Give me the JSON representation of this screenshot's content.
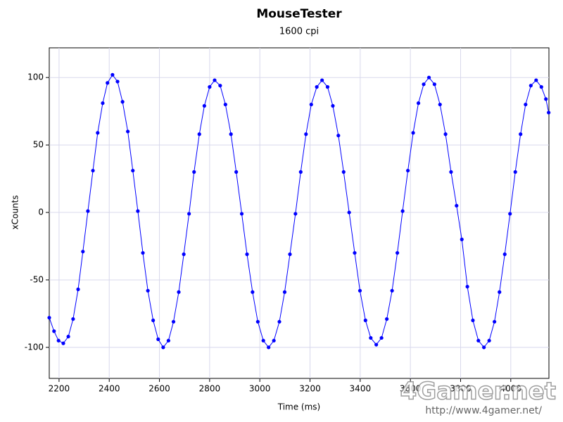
{
  "chart_data": {
    "type": "scatter",
    "line": true,
    "title": "MouseTester",
    "subtitle": "1600 cpi",
    "x_label": "Time (ms)",
    "y_label": "xCounts",
    "xlim": [
      2161,
      4152
    ],
    "ylim": [
      -123,
      122
    ],
    "xticks": [
      2200,
      2400,
      2600,
      2800,
      3000,
      3200,
      3400,
      3600,
      3800,
      4000
    ],
    "yticks": [
      -100,
      -50,
      0,
      50,
      100
    ],
    "grid": true,
    "series": [
      {
        "color": "#0000ff",
        "x": [
          2161,
          2180,
          2198,
          2217,
          2237,
          2256,
          2276,
          2295,
          2315,
          2335,
          2354,
          2374,
          2393,
          2413,
          2433,
          2453,
          2474,
          2494,
          2514,
          2534,
          2554,
          2575,
          2595,
          2615,
          2636,
          2656,
          2677,
          2697,
          2718,
          2738,
          2759,
          2779,
          2800,
          2820,
          2842,
          2863,
          2885,
          2906,
          2928,
          2949,
          2971,
          2992,
          3014,
          3035,
          3056,
          3078,
          3099,
          3120,
          3142,
          3163,
          3184,
          3205,
          3227,
          3248,
          3270,
          3291,
          3313,
          3334,
          3356,
          3378,
          3399,
          3421,
          3442,
          3464,
          3485,
          3506,
          3527,
          3548,
          3569,
          3590,
          3611,
          3632,
          3653,
          3674,
          3696,
          3718,
          3740,
          3762,
          3784,
          3805,
          3827,
          3849,
          3871,
          3893,
          3914,
          3935,
          3955,
          3976,
          3997,
          4018,
          4039,
          4059,
          4080,
          4101,
          4122,
          4140,
          4151
        ],
        "values": [
          -78,
          -88,
          -95,
          -97,
          -92,
          -79,
          -57,
          -29,
          1,
          31,
          59,
          81,
          96,
          102,
          97,
          82,
          60,
          31,
          1,
          -30,
          -58,
          -80,
          -94,
          -100,
          -95,
          -81,
          -59,
          -31,
          -1,
          30,
          58,
          79,
          93,
          98,
          94,
          80,
          58,
          30,
          -1,
          -31,
          -59,
          -81,
          -95,
          -100,
          -95,
          -81,
          -59,
          -31,
          -1,
          30,
          58,
          80,
          93,
          98,
          93,
          79,
          57,
          30,
          0,
          -30,
          -58,
          -80,
          -93,
          -98,
          -93,
          -79,
          -58,
          -30,
          1,
          31,
          59,
          81,
          95,
          100,
          95,
          80,
          58,
          30,
          5,
          -20,
          -55,
          -80,
          -95,
          -100,
          -95,
          -81,
          -59,
          -31,
          -1,
          30,
          58,
          80,
          94,
          98,
          93,
          84,
          74
        ]
      }
    ],
    "watermark": "4Gamer.net",
    "watermark_url": "http://www.4gamer.net/"
  }
}
